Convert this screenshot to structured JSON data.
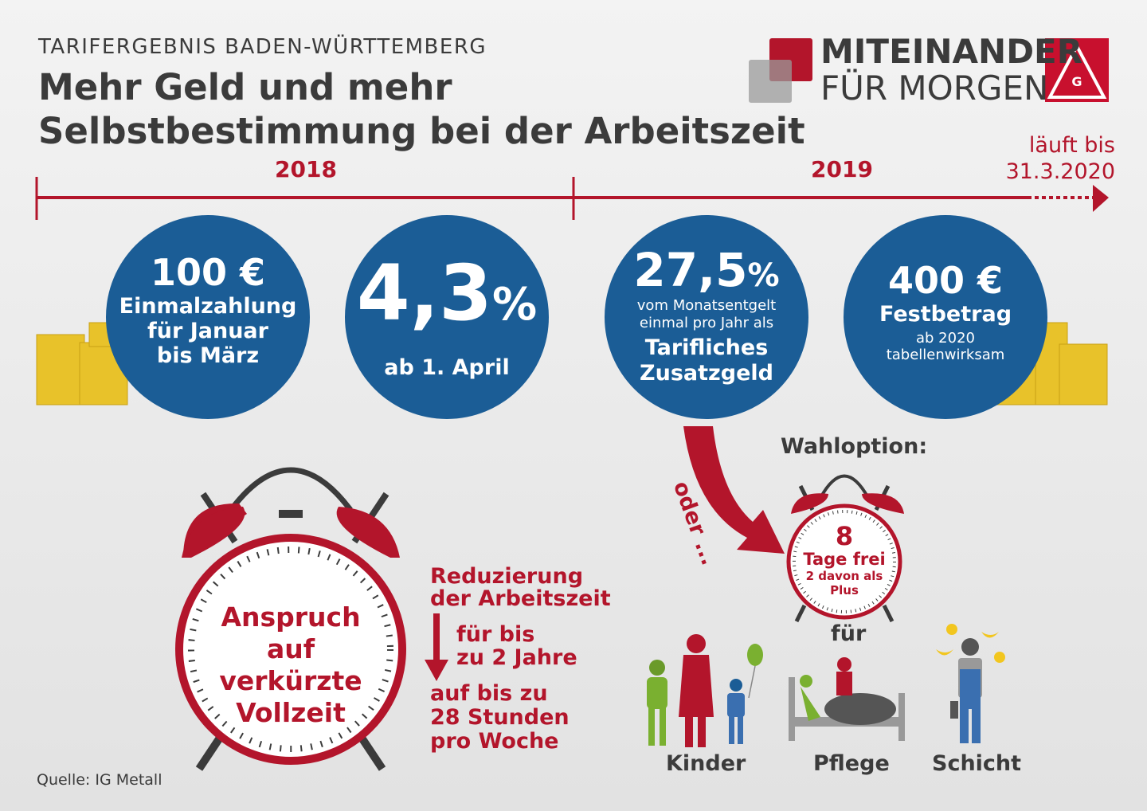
{
  "header": {
    "subtitle": "TARIFERGEBNIS BADEN-WÜRTTEMBERG",
    "title_line1": "Mehr Geld und mehr",
    "title_line2": "Selbstbestimmung bei der Arbeitszeit"
  },
  "logo": {
    "line1": "MITEINANDER",
    "line2": "FÜR MORGEN",
    "emblem_text": "IGM"
  },
  "timeline": {
    "year1": "2018",
    "year2": "2019",
    "end_line1": "läuft bis",
    "end_line2": "31.3.2020"
  },
  "circles": [
    {
      "big": "100 €",
      "l1": "Einmalzahlung",
      "l2": "für Januar",
      "l3": "bis März"
    },
    {
      "big": "4,3",
      "unit": "%",
      "l1": "ab 1. April"
    },
    {
      "big": "27,5",
      "unit": "%",
      "s1": "vom Monatsentgelt",
      "s2": "einmal pro Jahr als",
      "l1": "Tarifliches",
      "l2": "Zusatzgeld"
    },
    {
      "big": "400 €",
      "l1": "Festbetrag",
      "s1": "ab 2020",
      "s2": "tabellenwirksam"
    }
  ],
  "alt": {
    "oder": "oder ...",
    "wahloption": "Wahloption:",
    "days": "8",
    "tage": "Tage frei",
    "davon1": "2 davon als",
    "davon2": "Plus",
    "fuer": "für",
    "groups": [
      "Kinder",
      "Pflege",
      "Schicht"
    ]
  },
  "clock": {
    "l1": "Anspruch",
    "l2": "auf verkürzte",
    "l3": "Vollzeit"
  },
  "reduction": {
    "h1": "Reduzierung",
    "h2": "der Arbeitszeit",
    "d1": "für bis",
    "d2": "zu 2 Jahre",
    "t1": "auf bis zu",
    "t2": "28 Stunden",
    "t3": "pro Woche"
  },
  "source": "Quelle: IG Metall",
  "colors": {
    "red": "#b3152b",
    "blue": "#1b5d96",
    "dark": "#3b3b3b",
    "gold": "#e8c22a"
  }
}
